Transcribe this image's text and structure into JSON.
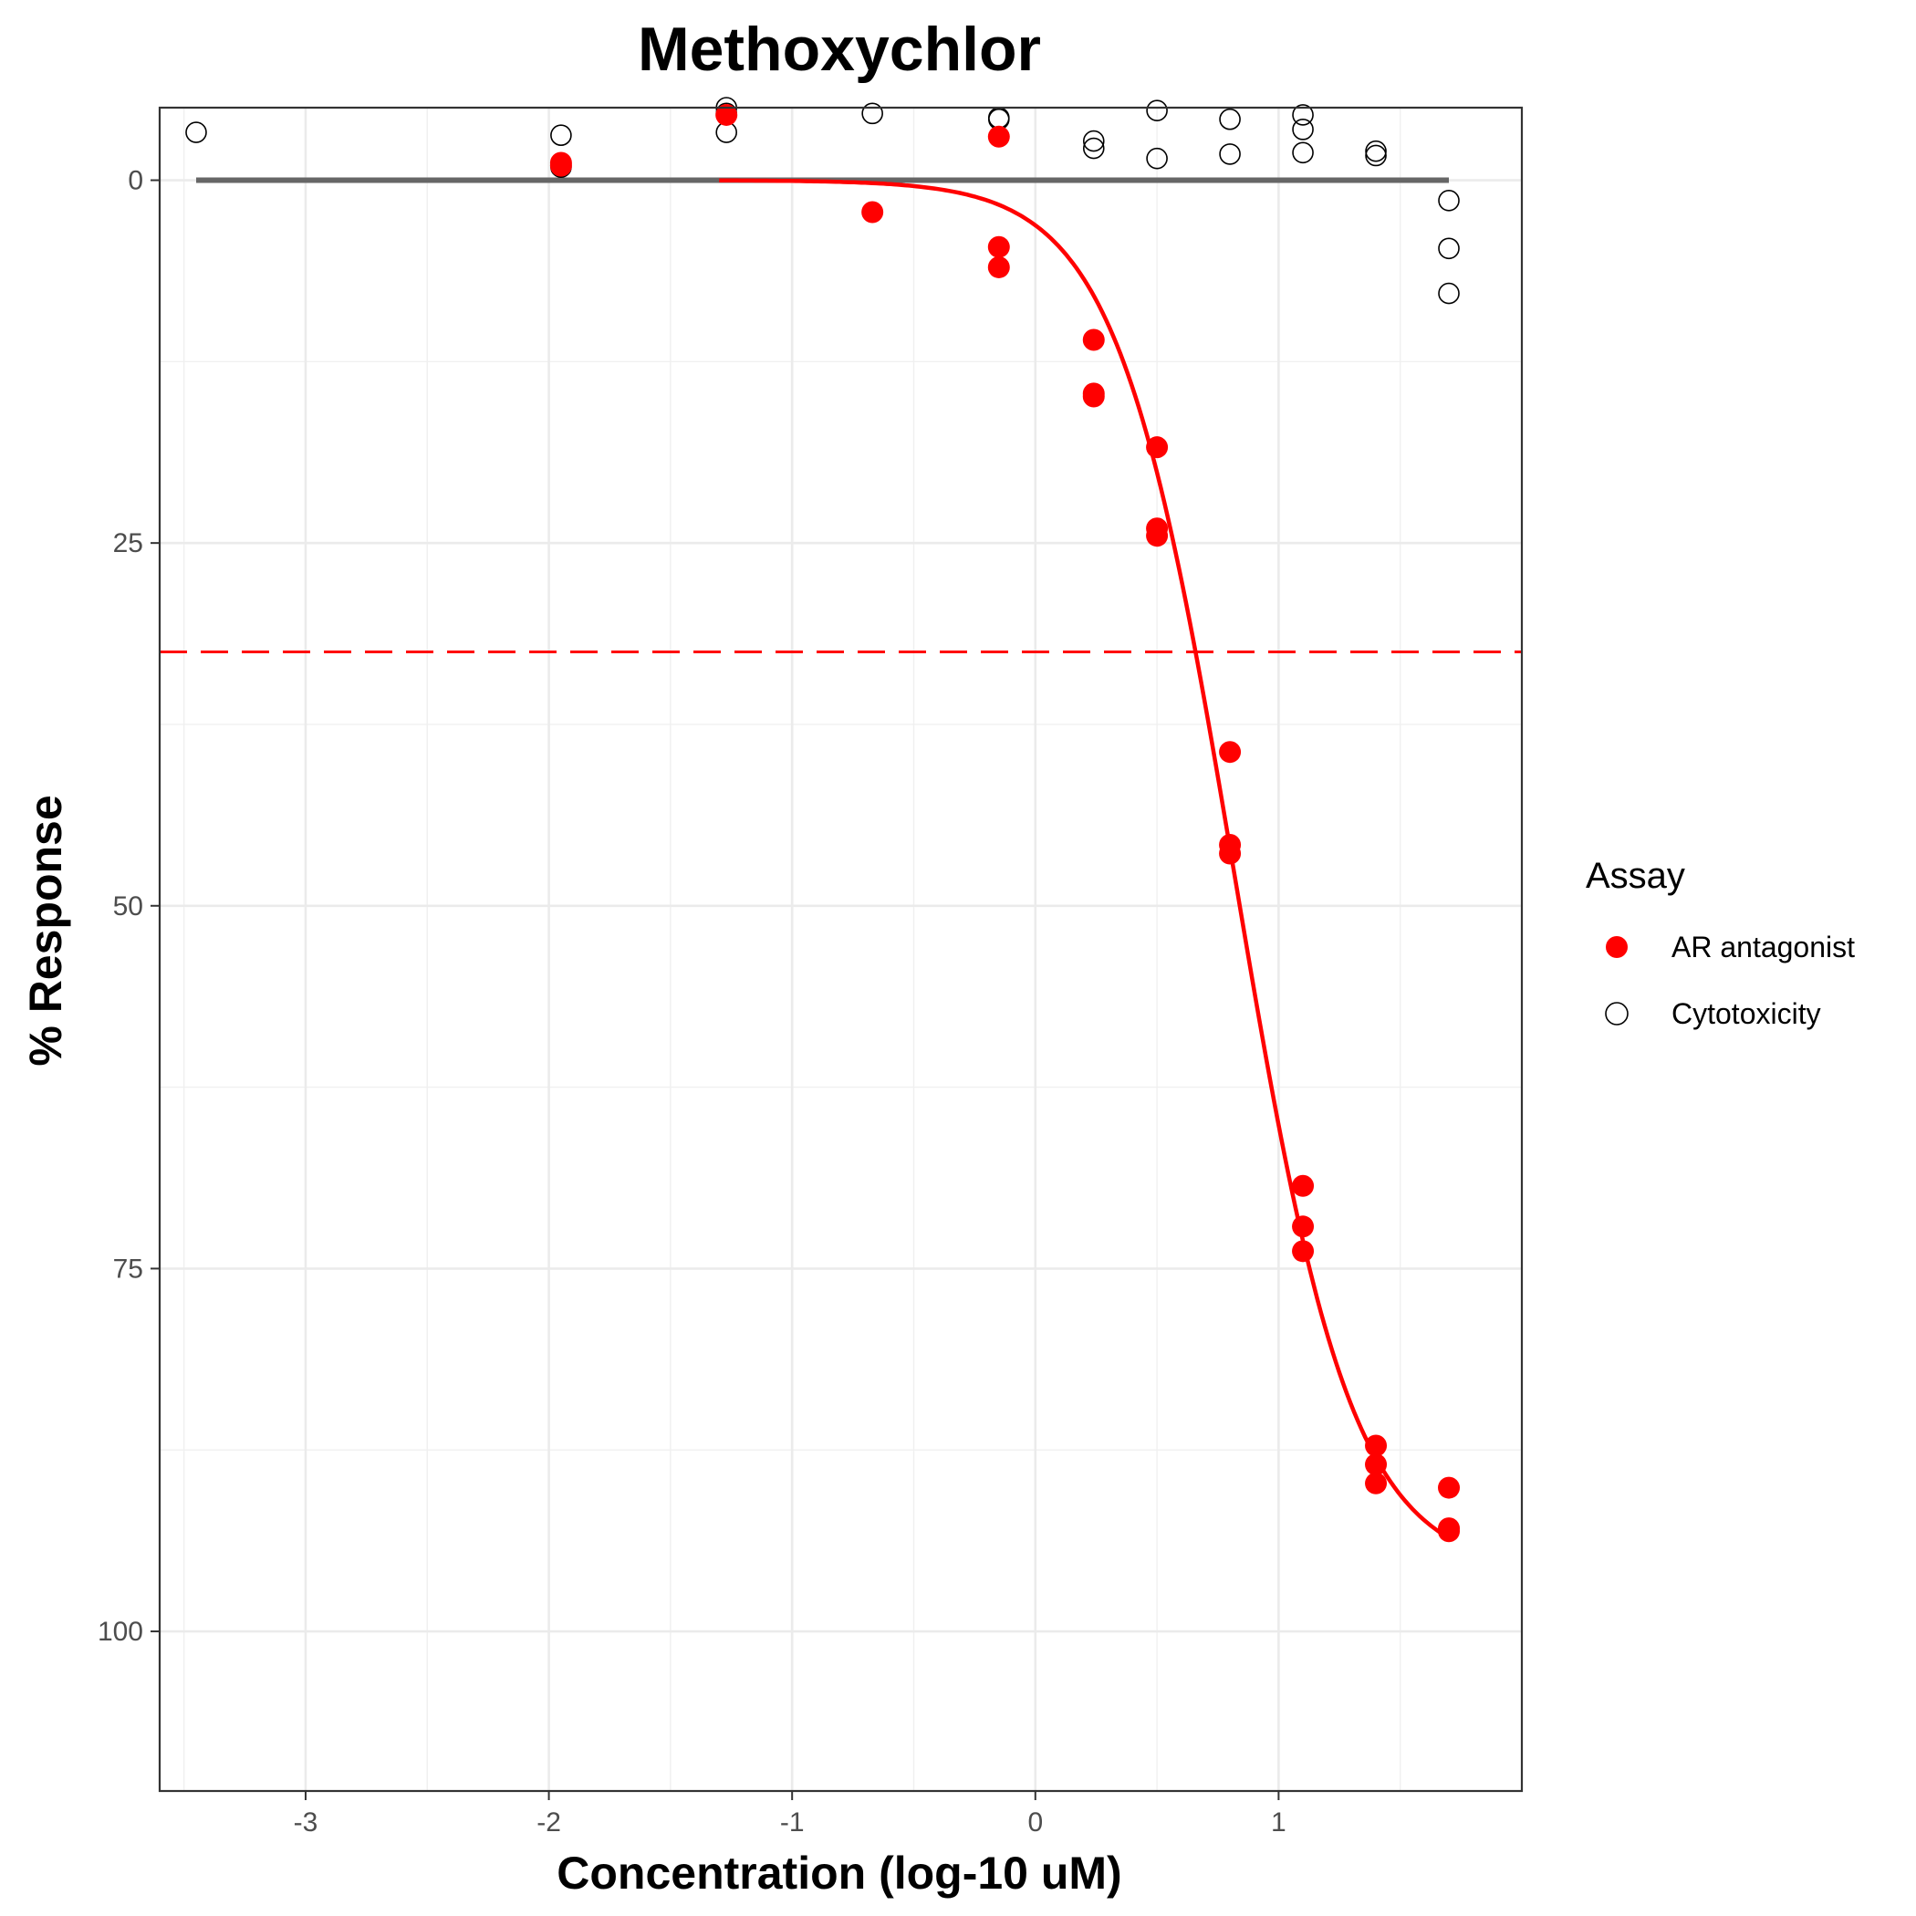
{
  "chart_data": {
    "type": "scatter",
    "title": "Methoxychlor",
    "xlabel": "Concentration (log-10 uM)",
    "ylabel": "% Response",
    "xlim": [
      -3.6,
      2.0
    ],
    "ylim": [
      111,
      -5
    ],
    "y_reversed": true,
    "grid": true,
    "x_ticks": [
      -3,
      -2,
      -1,
      0,
      1
    ],
    "x_tick_labels": [
      "-3",
      "-2",
      "-1",
      "0",
      "1"
    ],
    "y_ticks": [
      0,
      25,
      50,
      75,
      100
    ],
    "y_tick_labels": [
      "0",
      "25",
      "50",
      "75",
      "100"
    ],
    "legend": {
      "title": "Assay",
      "position": "right",
      "entries": [
        "AR antagonist",
        "Cytotoxicity"
      ]
    },
    "colors": {
      "ar": "#ff0000",
      "cyto": "#000000",
      "baseline": "#666666"
    },
    "series": [
      {
        "name": "AR antagonist",
        "style": "filled",
        "points": [
          [
            -1.95,
            -1.2
          ],
          [
            -1.95,
            -1.0
          ],
          [
            -1.27,
            -4.5
          ],
          [
            -0.67,
            2.2
          ],
          [
            -0.15,
            -3.0
          ],
          [
            -0.15,
            4.6
          ],
          [
            -0.15,
            6.0
          ],
          [
            0.24,
            11.0
          ],
          [
            0.24,
            14.7
          ],
          [
            0.24,
            14.9
          ],
          [
            0.5,
            18.4
          ],
          [
            0.5,
            24.0
          ],
          [
            0.5,
            24.5
          ],
          [
            0.8,
            39.4
          ],
          [
            0.8,
            45.8
          ],
          [
            0.8,
            46.4
          ],
          [
            1.1,
            69.3
          ],
          [
            1.1,
            72.1
          ],
          [
            1.1,
            73.8
          ],
          [
            1.4,
            87.2
          ],
          [
            1.4,
            88.5
          ],
          [
            1.4,
            89.8
          ],
          [
            1.7,
            90.1
          ],
          [
            1.7,
            92.9
          ],
          [
            1.7,
            93.1
          ]
        ]
      },
      {
        "name": "Cytotoxicity",
        "style": "open",
        "points": [
          [
            -3.45,
            -3.3
          ],
          [
            -1.95,
            -3.1
          ],
          [
            -1.95,
            -0.9
          ],
          [
            -1.27,
            -5.0
          ],
          [
            -1.27,
            -4.6
          ],
          [
            -1.27,
            -3.3
          ],
          [
            -0.67,
            -4.6
          ],
          [
            -0.15,
            -4.3
          ],
          [
            -0.15,
            -4.2
          ],
          [
            0.24,
            -2.7
          ],
          [
            0.24,
            -2.2
          ],
          [
            0.5,
            -4.8
          ],
          [
            0.5,
            -1.5
          ],
          [
            0.8,
            -4.2
          ],
          [
            0.8,
            -1.8
          ],
          [
            1.1,
            -4.5
          ],
          [
            1.1,
            -3.5
          ],
          [
            1.1,
            -1.9
          ],
          [
            1.4,
            -2.0
          ],
          [
            1.4,
            -1.7
          ],
          [
            1.7,
            1.4
          ],
          [
            1.7,
            4.7
          ],
          [
            1.7,
            7.8
          ]
        ]
      }
    ],
    "baseline": {
      "x": [
        -3.45,
        1.7
      ],
      "y": 0
    },
    "threshold": {
      "y": 32.5
    },
    "fit_curve": {
      "top": 0,
      "bottom": 96,
      "ac50_log": 0.82,
      "hill": 1.8,
      "x_range": [
        -1.3,
        1.7
      ]
    }
  }
}
